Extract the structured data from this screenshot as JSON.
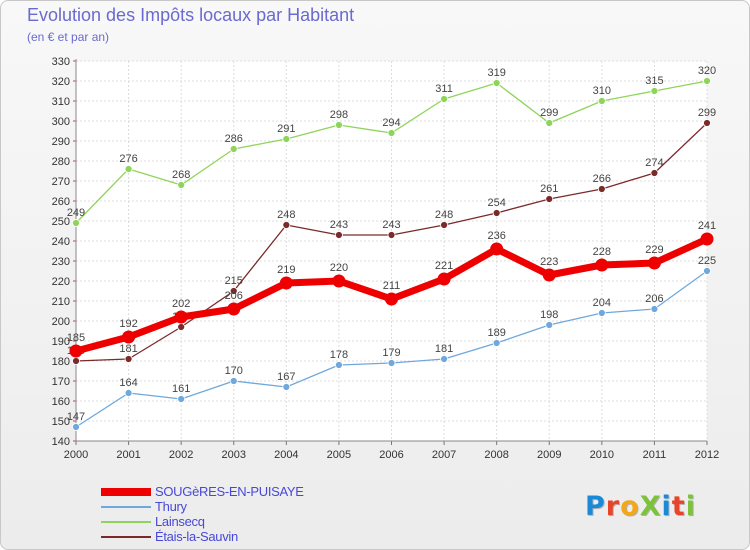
{
  "title": "Evolution des Impôts locaux par Habitant",
  "subtitle": "(en € et par an)",
  "logo_text": "ProXiti",
  "logo_colors": [
    "#1a8ad8",
    "#e8442a",
    "#f2a81a",
    "#7cc23a",
    "#1a8ad8",
    "#e8442a",
    "#7cc23a"
  ],
  "chart_data": {
    "type": "line",
    "x": [
      "2000",
      "2001",
      "2002",
      "2003",
      "2004",
      "2005",
      "2006",
      "2007",
      "2008",
      "2009",
      "2010",
      "2011",
      "2012"
    ],
    "ylim": [
      140,
      330
    ],
    "yticks": [
      140,
      150,
      160,
      170,
      180,
      190,
      200,
      210,
      220,
      230,
      240,
      250,
      260,
      270,
      280,
      290,
      300,
      310,
      320,
      330
    ],
    "grid": true,
    "legend_position": "bottom-left",
    "series": [
      {
        "name": "SOUGèRES-EN-PUISAYE",
        "color": "#ee0000",
        "emphasis": true,
        "values": [
          185,
          192,
          202,
          206,
          219,
          220,
          211,
          221,
          236,
          223,
          228,
          229,
          241
        ]
      },
      {
        "name": "Thury",
        "color": "#6fa8dc",
        "values": [
          147,
          164,
          161,
          170,
          167,
          178,
          179,
          181,
          189,
          198,
          204,
          206,
          225
        ]
      },
      {
        "name": "Lainsecq",
        "color": "#8fd45a",
        "values": [
          249,
          276,
          268,
          286,
          291,
          298,
          294,
          311,
          319,
          299,
          310,
          315,
          320
        ]
      },
      {
        "name": "Étais-la-Sauvin",
        "color": "#7b2a2a",
        "values": [
          180,
          181,
          197,
          215,
          248,
          243,
          243,
          248,
          254,
          261,
          266,
          274,
          299
        ]
      }
    ]
  }
}
